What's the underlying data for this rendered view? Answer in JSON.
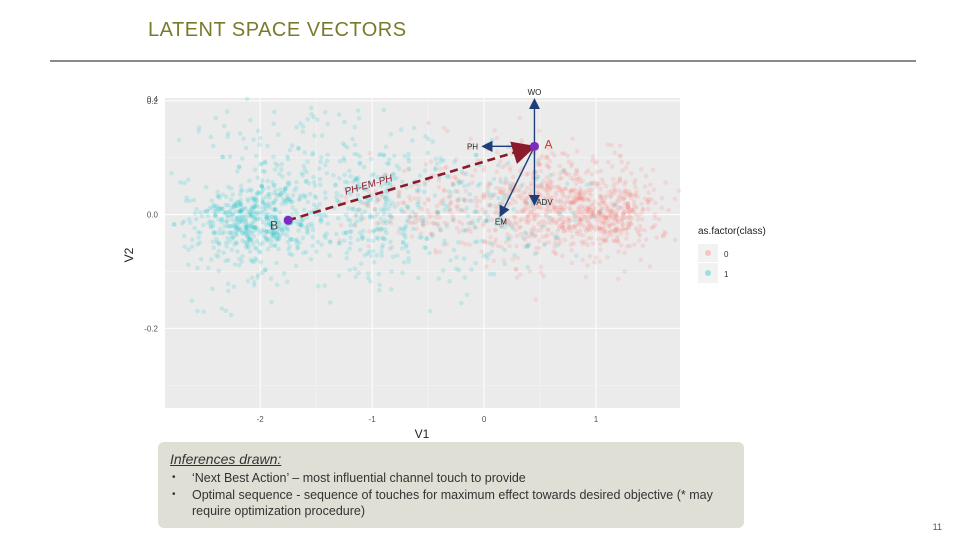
{
  "slide": {
    "title": "LATENT SPACE VECTORS",
    "page_number": "11",
    "accent_colors": [
      "#1b9ad6",
      "#e8c11a",
      "#a8bf1e"
    ]
  },
  "chart_data": {
    "type": "scatter",
    "xlabel": "V1",
    "ylabel": "V2",
    "xlim": [
      -2.85,
      1.75
    ],
    "ylim": [
      -0.34,
      0.205
    ],
    "x_ticks": [
      -2,
      -1,
      0,
      1
    ],
    "x_tick_labels": [
      "-2",
      "-1",
      "0",
      "1"
    ],
    "y_ticks": [
      -0.2,
      0.0,
      0.2
    ],
    "y_tick_labels": [
      "-0.2",
      "0.0",
      "0.2"
    ],
    "top_tick_label": "0.4",
    "grid": true,
    "background": "#ebebeb",
    "legend": {
      "title": "as.factor(class)",
      "position": "right",
      "entries": [
        {
          "label": "0",
          "color": "#f8766d"
        },
        {
          "label": "1",
          "color": "#00bfc4"
        }
      ]
    },
    "series": [
      {
        "name": "0",
        "color": "#f8766d",
        "centers": [
          [
            0.85,
            0.01
          ],
          [
            0.3,
            0.02
          ],
          [
            -0.5,
            0.01
          ]
        ]
      },
      {
        "name": "1",
        "color": "#00bfc4",
        "centers": [
          [
            -2.1,
            -0.01
          ],
          [
            -1.3,
            0.02
          ],
          [
            -0.2,
            0.0
          ]
        ]
      }
    ],
    "annotations": {
      "point_A": {
        "label": "A",
        "x": 0.45,
        "y": 0.12
      },
      "point_B": {
        "label": "B",
        "x": -1.75,
        "y": -0.01
      },
      "vectors": [
        {
          "label": "WO",
          "x0": 0.45,
          "y0": 0.12,
          "x1": 0.45,
          "y1": 0.2
        },
        {
          "label": "PH",
          "x0": 0.45,
          "y0": 0.12,
          "x1": 0.0,
          "y1": 0.12
        },
        {
          "label": "EM",
          "x0": 0.45,
          "y0": 0.12,
          "x1": 0.15,
          "y1": 0.0
        },
        {
          "label": "ADV",
          "x0": 0.45,
          "y0": 0.12,
          "x1": 0.45,
          "y1": 0.02
        }
      ],
      "dashed_path_label": "PH-EM-PH"
    }
  },
  "inferences": {
    "title": "Inferences drawn:",
    "bullets": [
      "‘Next Best Action’ – most influential channel touch to provide",
      "Optimal sequence  - sequence of touches for maximum effect towards desired objective (* may require optimization procedure)"
    ],
    "bullet_glyph": "•"
  }
}
